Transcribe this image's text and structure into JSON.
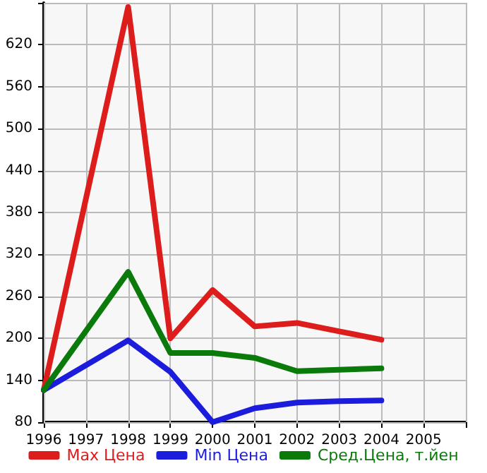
{
  "chart_data": {
    "type": "line",
    "x": [
      1996,
      1997,
      1998,
      1999,
      2000,
      2001,
      2002,
      2003,
      2004
    ],
    "series": [
      {
        "name": "Max Цена",
        "color": "#dd1c1c",
        "values": [
          126,
          null,
          674,
          200,
          269,
          217,
          222,
          210,
          198
        ]
      },
      {
        "name": "Min Цена",
        "color": "#1c1cdd",
        "values": [
          126,
          null,
          197,
          152,
          80,
          100,
          108,
          110,
          111
        ]
      },
      {
        "name": "Сред.Цена, т.йен",
        "color": "#0a7a0a",
        "values": [
          126,
          null,
          295,
          179,
          179,
          172,
          153,
          155,
          157
        ]
      }
    ],
    "xlim": [
      1996,
      2006
    ],
    "xticks": [
      1996,
      1997,
      1998,
      1999,
      2000,
      2001,
      2002,
      2003,
      2004,
      2005,
      {
        "value": 2006,
        "label": null
      }
    ],
    "ylim": [
      80,
      680
    ],
    "yticks": [
      80,
      140,
      200,
      260,
      320,
      380,
      440,
      500,
      560,
      620,
      {
        "value": 680,
        "label": null
      }
    ],
    "grid": true,
    "legend": "bottom",
    "marker": "none",
    "line_style": "solid"
  }
}
